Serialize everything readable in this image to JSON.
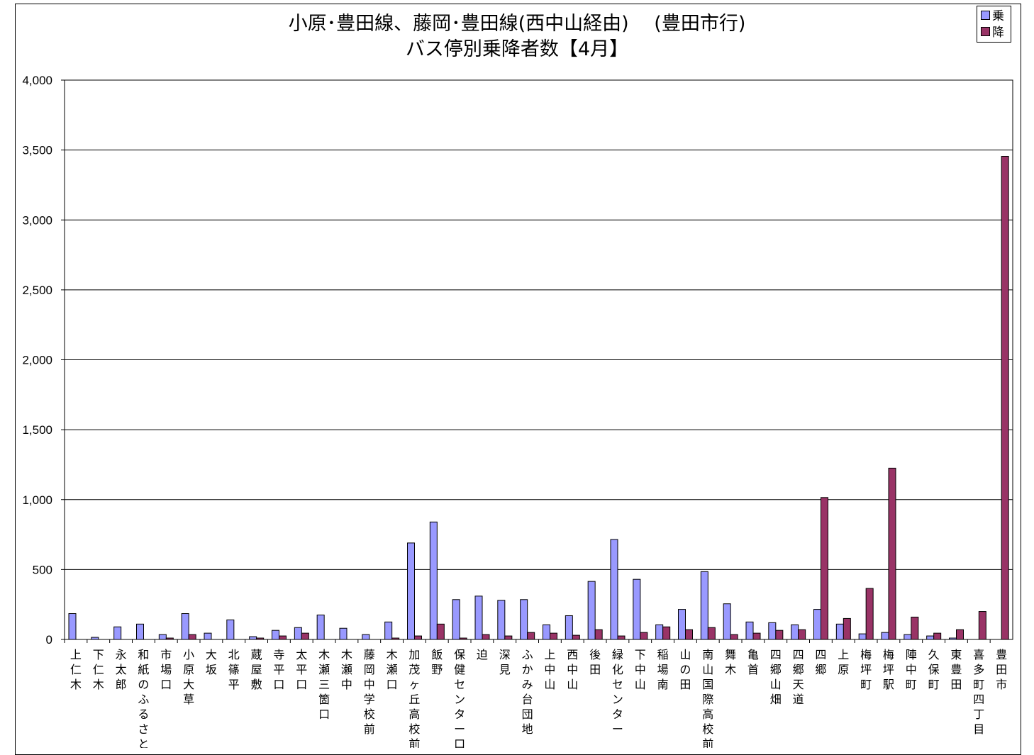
{
  "chart_data": {
    "type": "bar",
    "title": "小原･豊田線、藤岡･豊田線(西中山経由)　 (豊田市行)",
    "subtitle": "バス停別乗降者数【4月】",
    "xlabel": "",
    "ylabel": "",
    "ylim": [
      0,
      4000
    ],
    "yticks": [
      "0",
      "500",
      "1,000",
      "1,500",
      "2,000",
      "2,500",
      "3,000",
      "3,500",
      "4,000"
    ],
    "grid": true,
    "legend_position": "top-right",
    "categories": [
      "上仁木",
      "下仁木",
      "永太郎",
      "和紙のふるさと",
      "市場口",
      "小原大草",
      "大坂",
      "北篠平",
      "蔵屋敷",
      "寺平口",
      "太平口",
      "木瀬三箇口",
      "木瀬中",
      "藤岡中学校前",
      "木瀬口",
      "加茂ヶ丘高校前",
      "飯野",
      "保健センター口",
      "迫",
      "深見",
      "ふかみ台団地",
      "上中山",
      "西中山",
      "後田",
      "緑化センター",
      "下中山",
      "稲場南",
      "山の田",
      "南山国際高校前",
      "舞木",
      "亀首",
      "四郷山畑",
      "四郷天道",
      "四郷",
      "上原",
      "梅坪町",
      "梅坪駅",
      "陣中町",
      "久保町",
      "東豊田",
      "喜多町四丁目",
      "豊田市"
    ],
    "series": [
      {
        "name": "乗",
        "color": "#9999ff",
        "values": [
          185,
          15,
          90,
          110,
          35,
          185,
          45,
          140,
          20,
          65,
          85,
          175,
          80,
          35,
          125,
          690,
          840,
          285,
          310,
          280,
          285,
          105,
          170,
          415,
          715,
          430,
          105,
          215,
          485,
          255,
          125,
          120,
          105,
          215,
          110,
          40,
          50,
          35,
          25,
          10,
          0,
          0
        ]
      },
      {
        "name": "降",
        "color": "#993366",
        "values": [
          0,
          0,
          0,
          0,
          10,
          35,
          0,
          0,
          10,
          25,
          45,
          0,
          0,
          0,
          10,
          25,
          110,
          10,
          35,
          25,
          50,
          45,
          30,
          70,
          25,
          50,
          90,
          70,
          85,
          35,
          45,
          65,
          70,
          1015,
          150,
          365,
          1225,
          160,
          45,
          70,
          200,
          3455
        ]
      }
    ]
  }
}
